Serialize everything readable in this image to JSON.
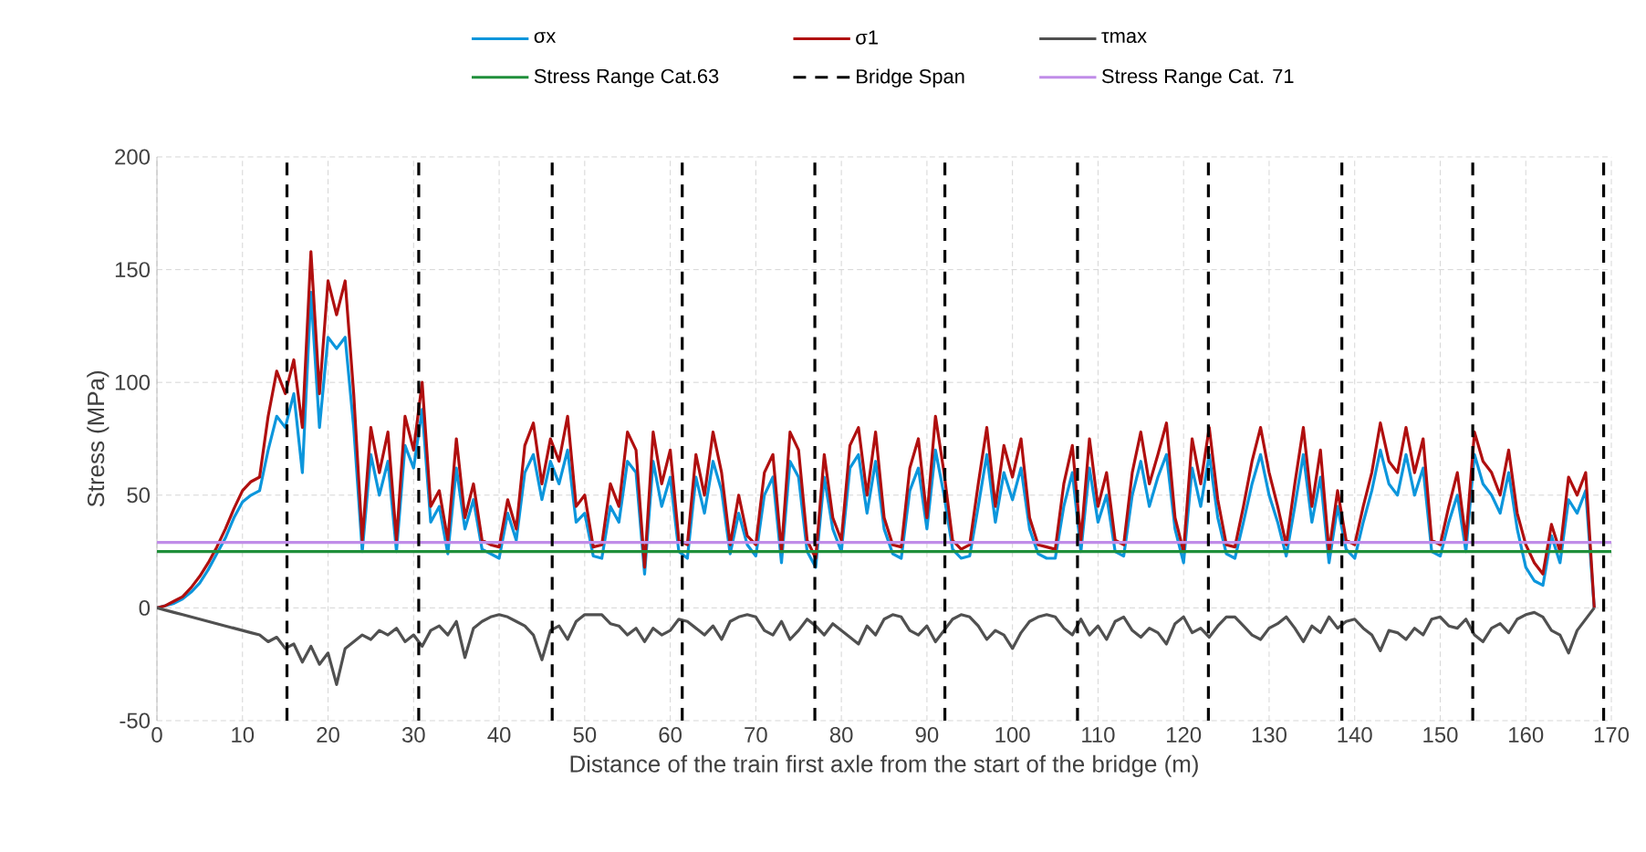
{
  "chart_data": {
    "type": "line",
    "xlabel": "Distance of the train first axle from the start of the bridge (m)",
    "ylabel": "Stress (MPa)",
    "x": [
      0,
      1,
      2,
      3,
      4,
      5,
      6,
      7,
      8,
      9,
      10,
      11,
      12,
      13,
      14,
      15,
      16,
      17,
      18,
      19,
      20,
      21,
      22,
      23,
      24,
      25,
      26,
      27,
      28,
      29,
      30,
      31,
      32,
      33,
      34,
      35,
      36,
      37,
      38,
      39,
      40,
      41,
      42,
      43,
      44,
      45,
      46,
      47,
      48,
      49,
      50,
      51,
      52,
      53,
      54,
      55,
      56,
      57,
      58,
      59,
      60,
      61,
      62,
      63,
      64,
      65,
      66,
      67,
      68,
      69,
      70,
      71,
      72,
      73,
      74,
      75,
      76,
      77,
      78,
      79,
      80,
      81,
      82,
      83,
      84,
      85,
      86,
      87,
      88,
      89,
      90,
      91,
      92,
      93,
      94,
      95,
      96,
      97,
      98,
      99,
      100,
      101,
      102,
      103,
      104,
      105,
      106,
      107,
      108,
      109,
      110,
      111,
      112,
      113,
      114,
      115,
      116,
      117,
      118,
      119,
      120,
      121,
      122,
      123,
      124,
      125,
      126,
      127,
      128,
      129,
      130,
      131,
      132,
      133,
      134,
      135,
      136,
      137,
      138,
      139,
      140,
      141,
      142,
      143,
      144,
      145,
      146,
      147,
      148,
      149,
      150,
      151,
      152,
      153,
      154,
      155,
      156,
      157,
      158,
      159,
      160,
      161,
      162,
      163,
      164,
      165,
      166,
      167,
      168
    ],
    "series": [
      {
        "name": "σx",
        "color": "#0c96dc",
        "values": [
          0,
          1,
          2,
          4,
          7,
          11,
          17,
          24,
          31,
          40,
          47,
          50,
          52,
          70,
          85,
          80,
          95,
          60,
          140,
          80,
          120,
          115,
          120,
          80,
          25,
          68,
          50,
          65,
          25,
          72,
          62,
          88,
          38,
          45,
          24,
          62,
          35,
          48,
          26,
          24,
          22,
          42,
          30,
          60,
          68,
          48,
          65,
          55,
          70,
          38,
          42,
          23,
          22,
          45,
          38,
          65,
          60,
          15,
          65,
          45,
          58,
          25,
          22,
          58,
          42,
          65,
          52,
          24,
          42,
          28,
          23,
          50,
          58,
          20,
          65,
          58,
          25,
          18,
          58,
          35,
          25,
          62,
          68,
          42,
          65,
          35,
          24,
          22,
          52,
          62,
          35,
          70,
          50,
          26,
          22,
          23,
          45,
          68,
          38,
          60,
          48,
          62,
          35,
          24,
          22,
          22,
          45,
          60,
          25,
          62,
          38,
          50,
          25,
          23,
          50,
          65,
          45,
          58,
          68,
          35,
          20,
          62,
          45,
          68,
          40,
          24,
          22,
          38,
          55,
          68,
          50,
          38,
          23,
          45,
          68,
          38,
          58,
          20,
          45,
          26,
          22,
          38,
          52,
          70,
          55,
          50,
          68,
          50,
          62,
          25,
          23,
          38,
          50,
          25,
          68,
          55,
          50,
          42,
          60,
          35,
          18,
          12,
          10,
          32,
          20,
          48,
          42,
          52,
          0
        ]
      },
      {
        "name": "σ1",
        "color": "#b00f0f",
        "values": [
          0,
          1,
          3,
          5,
          9,
          14,
          20,
          27,
          35,
          44,
          52,
          56,
          58,
          85,
          105,
          95,
          110,
          80,
          158,
          95,
          145,
          130,
          145,
          95,
          30,
          80,
          60,
          78,
          30,
          85,
          70,
          100,
          45,
          52,
          30,
          75,
          40,
          55,
          30,
          28,
          27,
          48,
          35,
          72,
          82,
          55,
          75,
          65,
          85,
          45,
          50,
          27,
          28,
          55,
          45,
          78,
          70,
          18,
          78,
          55,
          70,
          30,
          28,
          68,
          50,
          78,
          60,
          28,
          50,
          32,
          28,
          60,
          68,
          25,
          78,
          70,
          30,
          22,
          68,
          40,
          30,
          72,
          80,
          50,
          78,
          40,
          28,
          27,
          62,
          75,
          40,
          85,
          60,
          30,
          26,
          28,
          55,
          80,
          45,
          72,
          58,
          75,
          40,
          28,
          27,
          26,
          55,
          72,
          30,
          75,
          45,
          60,
          30,
          28,
          60,
          78,
          55,
          68,
          82,
          40,
          25,
          75,
          55,
          80,
          48,
          28,
          27,
          45,
          65,
          80,
          60,
          45,
          28,
          55,
          80,
          45,
          70,
          25,
          52,
          30,
          28,
          45,
          60,
          82,
          65,
          60,
          80,
          60,
          75,
          30,
          28,
          45,
          60,
          30,
          78,
          65,
          60,
          50,
          70,
          42,
          28,
          20,
          15,
          37,
          25,
          58,
          50,
          60,
          0
        ]
      },
      {
        "name": "τmax",
        "color": "#505050",
        "values": [
          0,
          -1,
          -2,
          -3,
          -4,
          -5,
          -6,
          -7,
          -8,
          -9,
          -10,
          -11,
          -12,
          -15,
          -13,
          -18,
          -16,
          -24,
          -17,
          -25,
          -20,
          -34,
          -18,
          -15,
          -12,
          -14,
          -10,
          -12,
          -9,
          -15,
          -12,
          -17,
          -10,
          -8,
          -12,
          -6,
          -22,
          -9,
          -6,
          -4,
          -3,
          -4,
          -6,
          -8,
          -12,
          -23,
          -10,
          -8,
          -14,
          -6,
          -3,
          -3,
          -3,
          -7,
          -8,
          -12,
          -9,
          -15,
          -9,
          -12,
          -10,
          -5,
          -6,
          -9,
          -12,
          -8,
          -14,
          -6,
          -4,
          -3,
          -4,
          -10,
          -12,
          -6,
          -14,
          -10,
          -5,
          -8,
          -12,
          -7,
          -10,
          -13,
          -16,
          -8,
          -12,
          -5,
          -3,
          -4,
          -10,
          -12,
          -8,
          -15,
          -10,
          -5,
          -3,
          -4,
          -8,
          -14,
          -10,
          -12,
          -18,
          -11,
          -6,
          -4,
          -3,
          -4,
          -9,
          -12,
          -5,
          -12,
          -8,
          -14,
          -6,
          -4,
          -10,
          -13,
          -9,
          -11,
          -16,
          -7,
          -4,
          -11,
          -9,
          -13,
          -8,
          -4,
          -4,
          -8,
          -12,
          -14,
          -9,
          -7,
          -4,
          -9,
          -15,
          -8,
          -11,
          -4,
          -9,
          -6,
          -5,
          -9,
          -12,
          -19,
          -10,
          -11,
          -14,
          -9,
          -12,
          -5,
          -4,
          -8,
          -9,
          -5,
          -12,
          -15,
          -9,
          -7,
          -11,
          -5,
          -3,
          -2,
          -4,
          -10,
          -12,
          -20,
          -10,
          -5,
          0
        ]
      }
    ],
    "ref_lines": [
      {
        "axis": "y",
        "value": 25,
        "label": "Stress Range Cat.63",
        "color": "#1f8f3a",
        "line_style": "solid"
      },
      {
        "axis": "x",
        "value": 15.2,
        "label": "Bridge Span",
        "color": "#000000",
        "line_style": "dashed"
      },
      {
        "axis": "y",
        "value": 29,
        "label": "Stress Range Cat. 71",
        "color": "#c08ce8",
        "line_style": "solid"
      },
      {
        "axis": "x",
        "value": 30.6,
        "color": "#000000",
        "line_style": "dashed"
      },
      {
        "axis": "x",
        "value": 46.2,
        "color": "#000000",
        "line_style": "dashed"
      },
      {
        "axis": "x",
        "value": 61.4,
        "color": "#000000",
        "line_style": "dashed"
      },
      {
        "axis": "x",
        "value": 76.9,
        "color": "#000000",
        "line_style": "dashed"
      },
      {
        "axis": "x",
        "value": 92.1,
        "color": "#000000",
        "line_style": "dashed"
      },
      {
        "axis": "x",
        "value": 107.6,
        "color": "#000000",
        "line_style": "dashed"
      },
      {
        "axis": "x",
        "value": 122.9,
        "color": "#000000",
        "line_style": "dashed"
      },
      {
        "axis": "x",
        "value": 138.5,
        "color": "#000000",
        "line_style": "dashed"
      },
      {
        "axis": "x",
        "value": 153.8,
        "color": "#000000",
        "line_style": "dashed"
      },
      {
        "axis": "x",
        "value": 169.1,
        "color": "#000000",
        "line_style": "dashed"
      }
    ],
    "xlim": [
      0,
      170
    ],
    "xticks": [
      0,
      10,
      20,
      30,
      40,
      50,
      60,
      70,
      80,
      90,
      100,
      110,
      120,
      130,
      140,
      150,
      160,
      170
    ],
    "ylim": [
      -50,
      200
    ],
    "yticks": [
      -50,
      0,
      50,
      100,
      150,
      200
    ],
    "grid": true,
    "legend": "top",
    "marker": "none",
    "line_style": "solid"
  }
}
